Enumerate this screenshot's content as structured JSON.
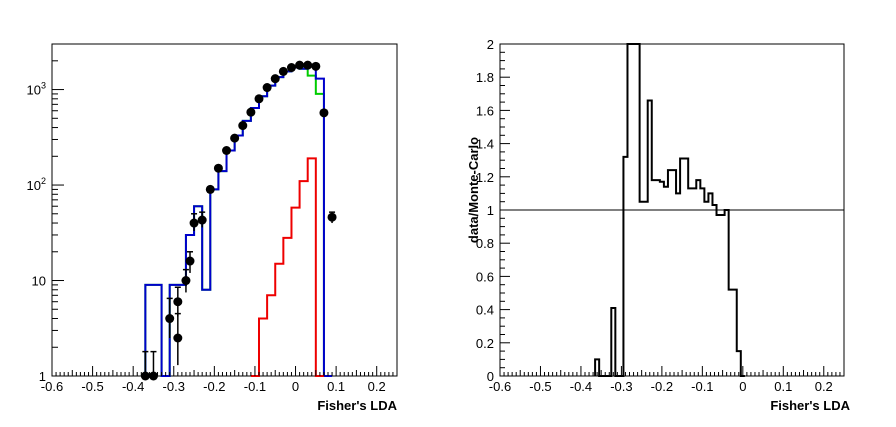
{
  "chart_data": [
    {
      "type": "step-histogram",
      "title": "",
      "xlabel": "Fisher's LDA",
      "ylabel": "",
      "yscale": "log",
      "xlim": [
        -0.6,
        0.25
      ],
      "ylim": [
        1,
        3000
      ],
      "xticks": [
        "-0.6",
        "-0.5",
        "-0.4",
        "-0.3",
        "-0.2",
        "-0.1",
        "0",
        "0.1",
        "0.2"
      ],
      "ytick_labels": [
        {
          "value": 1,
          "label": "1"
        },
        {
          "value": 10,
          "label": "10"
        },
        {
          "value": 100,
          "label": "10",
          "exp": "2"
        },
        {
          "value": 1000,
          "label": "10",
          "exp": "3"
        }
      ],
      "bin_width": 0.02,
      "series": [
        {
          "color": "#00cc00",
          "bins": [
            {
              "x": -0.36,
              "y": 9
            },
            {
              "x": -0.34,
              "y": 9
            },
            {
              "x": -0.32,
              "y": 1
            },
            {
              "x": -0.3,
              "y": 9
            },
            {
              "x": -0.28,
              "y": 9
            },
            {
              "x": -0.26,
              "y": 30
            },
            {
              "x": -0.24,
              "y": 60
            },
            {
              "x": -0.22,
              "y": 8
            },
            {
              "x": -0.2,
              "y": 90
            },
            {
              "x": -0.18,
              "y": 140
            },
            {
              "x": -0.16,
              "y": 230
            },
            {
              "x": -0.14,
              "y": 330
            },
            {
              "x": -0.12,
              "y": 470
            },
            {
              "x": -0.1,
              "y": 640
            },
            {
              "x": -0.08,
              "y": 850
            },
            {
              "x": -0.06,
              "y": 1100
            },
            {
              "x": -0.04,
              "y": 1350
            },
            {
              "x": -0.02,
              "y": 1550
            },
            {
              "x": 0.0,
              "y": 1700
            },
            {
              "x": 0.02,
              "y": 1650
            },
            {
              "x": 0.04,
              "y": 1400
            },
            {
              "x": 0.06,
              "y": 900
            },
            {
              "x": 0.08,
              "y": 1
            }
          ]
        },
        {
          "color": "#0000cc",
          "bins": [
            {
              "x": -0.36,
              "y": 9
            },
            {
              "x": -0.34,
              "y": 9
            },
            {
              "x": -0.32,
              "y": 1
            },
            {
              "x": -0.3,
              "y": 9
            },
            {
              "x": -0.28,
              "y": 9
            },
            {
              "x": -0.26,
              "y": 30
            },
            {
              "x": -0.24,
              "y": 60
            },
            {
              "x": -0.22,
              "y": 8
            },
            {
              "x": -0.2,
              "y": 90
            },
            {
              "x": -0.18,
              "y": 140
            },
            {
              "x": -0.16,
              "y": 230
            },
            {
              "x": -0.14,
              "y": 330
            },
            {
              "x": -0.12,
              "y": 470
            },
            {
              "x": -0.1,
              "y": 640
            },
            {
              "x": -0.08,
              "y": 850
            },
            {
              "x": -0.06,
              "y": 1100
            },
            {
              "x": -0.04,
              "y": 1350
            },
            {
              "x": -0.02,
              "y": 1550
            },
            {
              "x": 0.0,
              "y": 1700
            },
            {
              "x": 0.02,
              "y": 1650
            },
            {
              "x": 0.04,
              "y": 1800
            },
            {
              "x": 0.06,
              "y": 1300
            },
            {
              "x": 0.08,
              "y": 1
            }
          ]
        },
        {
          "color": "#ee0000",
          "bins": [
            {
              "x": -0.1,
              "y": 1
            },
            {
              "x": -0.08,
              "y": 4
            },
            {
              "x": -0.06,
              "y": 7
            },
            {
              "x": -0.04,
              "y": 15
            },
            {
              "x": -0.02,
              "y": 28
            },
            {
              "x": 0.0,
              "y": 58
            },
            {
              "x": 0.02,
              "y": 110
            },
            {
              "x": 0.04,
              "y": 190
            },
            {
              "x": 0.06,
              "y": 1
            }
          ]
        }
      ],
      "data_points": [
        {
          "x": -0.37,
          "y": 1,
          "err": [
            1,
            1.8
          ]
        },
        {
          "x": -0.35,
          "y": 1,
          "err": [
            1,
            1.8
          ]
        },
        {
          "x": -0.29,
          "y": 2.5,
          "err": [
            1.3,
            4.5
          ]
        },
        {
          "x": -0.31,
          "y": 4,
          "err": [
            2.5,
            6.5
          ]
        },
        {
          "x": -0.29,
          "y": 6,
          "err": [
            4.2,
            8.5
          ]
        },
        {
          "x": -0.27,
          "y": 10,
          "err": [
            7.5,
            13
          ]
        },
        {
          "x": -0.26,
          "y": 16,
          "err": [
            12,
            20
          ]
        },
        {
          "x": -0.25,
          "y": 40,
          "err": [
            33,
            50
          ]
        },
        {
          "x": -0.23,
          "y": 43,
          "err": [
            36,
            52
          ]
        },
        {
          "x": -0.21,
          "y": 90
        },
        {
          "x": -0.19,
          "y": 150
        },
        {
          "x": -0.17,
          "y": 230
        },
        {
          "x": -0.15,
          "y": 310
        },
        {
          "x": -0.13,
          "y": 420
        },
        {
          "x": -0.11,
          "y": 580
        },
        {
          "x": -0.09,
          "y": 800
        },
        {
          "x": -0.07,
          "y": 1050
        },
        {
          "x": -0.05,
          "y": 1300
        },
        {
          "x": -0.03,
          "y": 1550
        },
        {
          "x": -0.01,
          "y": 1700
        },
        {
          "x": 0.01,
          "y": 1800
        },
        {
          "x": 0.03,
          "y": 1800
        },
        {
          "x": 0.05,
          "y": 1750
        },
        {
          "x": 0.07,
          "y": 570
        },
        {
          "x": 0.09,
          "y": 46,
          "err": [
            40,
            52
          ]
        }
      ]
    },
    {
      "type": "step-histogram",
      "title": "",
      "xlabel": "Fisher's LDA",
      "ylabel": "data/Monte-Carlo",
      "yscale": "linear",
      "xlim": [
        -0.6,
        0.25
      ],
      "ylim": [
        0,
        2
      ],
      "reference_line": 1,
      "xticks": [
        "-0.6",
        "-0.5",
        "-0.4",
        "-0.3",
        "-0.2",
        "-0.1",
        "0",
        "0.1",
        "0.2"
      ],
      "yticks": [
        "0",
        "0.2",
        "0.4",
        "0.6",
        "0.8",
        "1",
        "1.2",
        "1.4",
        "1.6",
        "1.8",
        "2"
      ],
      "bin_width": 0.01,
      "series": [
        {
          "color": "#000000",
          "bins": [
            {
              "x": -0.36,
              "y": 0.1
            },
            {
              "x": -0.35,
              "y": 0
            },
            {
              "x": -0.34,
              "y": 0
            },
            {
              "x": -0.33,
              "y": 0
            },
            {
              "x": -0.32,
              "y": 0.41
            },
            {
              "x": -0.31,
              "y": 0
            },
            {
              "x": -0.3,
              "y": 0
            },
            {
              "x": -0.29,
              "y": 1.32
            },
            {
              "x": -0.28,
              "y": 2
            },
            {
              "x": -0.27,
              "y": 2
            },
            {
              "x": -0.26,
              "y": 2
            },
            {
              "x": -0.25,
              "y": 1.05
            },
            {
              "x": -0.24,
              "y": 1.05
            },
            {
              "x": -0.23,
              "y": 1.66
            },
            {
              "x": -0.22,
              "y": 1.18
            },
            {
              "x": -0.21,
              "y": 1.18
            },
            {
              "x": -0.2,
              "y": 1.17
            },
            {
              "x": -0.19,
              "y": 1.14
            },
            {
              "x": -0.18,
              "y": 1.24
            },
            {
              "x": -0.17,
              "y": 1.24
            },
            {
              "x": -0.16,
              "y": 1.1
            },
            {
              "x": -0.15,
              "y": 1.31
            },
            {
              "x": -0.14,
              "y": 1.31
            },
            {
              "x": -0.13,
              "y": 1.13
            },
            {
              "x": -0.12,
              "y": 1.13
            },
            {
              "x": -0.11,
              "y": 1.18
            },
            {
              "x": -0.1,
              "y": 1.13
            },
            {
              "x": -0.09,
              "y": 1.05
            },
            {
              "x": -0.08,
              "y": 1.1
            },
            {
              "x": -0.07,
              "y": 1.03
            },
            {
              "x": -0.06,
              "y": 0.97
            },
            {
              "x": -0.05,
              "y": 0.97
            },
            {
              "x": -0.04,
              "y": 1
            },
            {
              "x": -0.03,
              "y": 0.52
            },
            {
              "x": -0.02,
              "y": 0.52
            },
            {
              "x": -0.01,
              "y": 0.15
            },
            {
              "x": 0.0,
              "y": 0
            }
          ]
        }
      ]
    }
  ]
}
